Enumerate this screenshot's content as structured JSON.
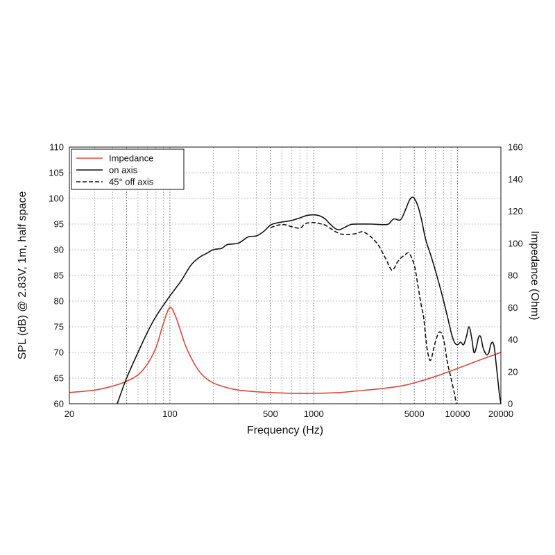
{
  "chart_data": {
    "type": "line",
    "xlabel": "Frequency (Hz)",
    "ylabel": "SPL (dB) @ 2.83V, 1m, half space",
    "y2label": "Impedance (Ohm)",
    "xscale": "log",
    "xlim": [
      20,
      20000
    ],
    "ylim": [
      60,
      110
    ],
    "y2lim": [
      0,
      160
    ],
    "x_ticks": [
      {
        "value": 20,
        "label": "20"
      },
      {
        "value": 100,
        "label": "100"
      },
      {
        "value": 500,
        "label": "500"
      },
      {
        "value": 1000,
        "label": "1000"
      },
      {
        "value": 5000,
        "label": "5000"
      },
      {
        "value": 10000,
        "label": "10000"
      },
      {
        "value": 20000,
        "label": "20000"
      }
    ],
    "y_ticks": [
      "60",
      "65",
      "70",
      "75",
      "80",
      "85",
      "90",
      "95",
      "100",
      "105",
      "110"
    ],
    "y2_ticks": [
      "0",
      "20",
      "40",
      "60",
      "80",
      "100",
      "120",
      "140",
      "160"
    ],
    "grid": true,
    "legend_position": "top-left",
    "series": [
      {
        "name": "Impedance",
        "axis": "right",
        "color": "#e0453a",
        "dash": "solid",
        "x": [
          20,
          30,
          40,
          50,
          60,
          70,
          80,
          90,
          100,
          110,
          120,
          130,
          150,
          170,
          200,
          250,
          300,
          400,
          500,
          700,
          1000,
          1500,
          2000,
          3000,
          4000,
          5000,
          7000,
          10000,
          15000,
          20000
        ],
        "y": [
          7,
          8.5,
          11,
          14,
          18,
          25,
          35,
          50,
          60,
          54,
          44,
          35,
          24,
          17.5,
          13,
          10,
          8.5,
          7.5,
          7,
          6.5,
          6.5,
          7,
          8,
          9.5,
          11,
          13,
          17,
          22,
          28,
          32
        ]
      },
      {
        "name": "on axis",
        "axis": "left",
        "color": "#111111",
        "dash": "solid",
        "x": [
          43,
          50,
          60,
          70,
          80,
          100,
          120,
          140,
          160,
          180,
          200,
          230,
          250,
          300,
          350,
          400,
          450,
          500,
          550,
          600,
          700,
          800,
          900,
          1000,
          1100,
          1200,
          1300,
          1400,
          1500,
          1600,
          1800,
          2000,
          2500,
          3000,
          3300,
          3600,
          4000,
          4300,
          4600,
          4800,
          5000,
          5300,
          5600,
          6000,
          6500,
          7000,
          7500,
          8000,
          8500,
          9000,
          9500,
          10000,
          10500,
          11000,
          11500,
          12000,
          12500,
          13000,
          13500,
          14000,
          14500,
          15000,
          15500,
          16000,
          16500,
          17000,
          17500,
          18000,
          18500,
          19000,
          19500,
          20000
        ],
        "y": [
          60,
          65,
          70,
          74,
          77,
          81,
          84,
          87,
          88.5,
          89.3,
          90,
          90.3,
          91,
          91.3,
          92.5,
          92.7,
          93.6,
          94.8,
          95.2,
          95.4,
          95.7,
          96.2,
          96.7,
          96.8,
          96.6,
          96,
          95,
          94.2,
          93.9,
          94.2,
          94.9,
          95,
          95,
          94.9,
          95,
          96,
          95.8,
          97.5,
          99.5,
          100.2,
          100,
          98.5,
          96,
          92,
          89,
          86,
          83,
          80,
          77,
          74,
          72,
          71.5,
          72,
          71.5,
          73,
          75,
          73,
          70,
          71,
          73,
          73,
          71,
          70,
          69.5,
          70,
          71.5,
          72,
          71,
          68,
          65,
          62,
          60
        ]
      },
      {
        "name": "45° off axis",
        "axis": "left",
        "color": "#111111",
        "dash": "dashed",
        "x": [
          500,
          550,
          600,
          650,
          700,
          800,
          850,
          900,
          1000,
          1100,
          1200,
          1300,
          1400,
          1500,
          1600,
          1800,
          2000,
          2200,
          2500,
          2800,
          3000,
          3200,
          3500,
          3800,
          4000,
          4300,
          4600,
          5000,
          5300,
          5600,
          5800,
          6000,
          6200,
          6500,
          7000,
          7500,
          8000,
          8500,
          9000,
          9500,
          9800
        ],
        "y": [
          94.3,
          94.7,
          94.9,
          94.8,
          94.5,
          94.2,
          94.8,
          95.2,
          95.3,
          95.1,
          94.8,
          94.2,
          93.6,
          93.2,
          93,
          93,
          93.2,
          93.5,
          92.5,
          91,
          89.5,
          88,
          86,
          87.5,
          88.3,
          89,
          89.3,
          87,
          83,
          79,
          77,
          73,
          70,
          68.5,
          72,
          74,
          72.5,
          68,
          65,
          62,
          60
        ]
      }
    ]
  }
}
